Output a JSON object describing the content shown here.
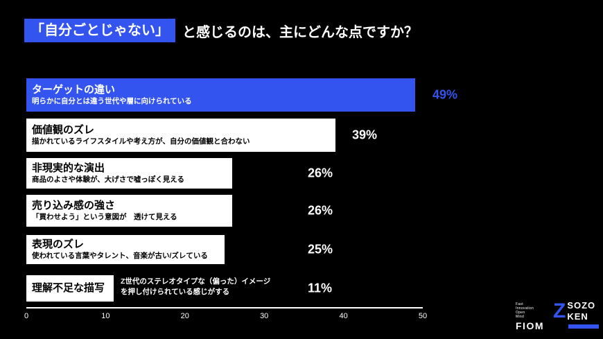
{
  "title": {
    "highlight": "「自分ごとじゃない」",
    "rest": "と感じるのは、主にどんな点ですか？"
  },
  "chart_data": {
    "type": "bar",
    "orientation": "horizontal",
    "xlim": [
      0,
      50
    ],
    "x_ticks": [
      "0",
      "10",
      "20",
      "30",
      "40",
      "50"
    ],
    "highlight_color": "#3354ee",
    "bar_color": "#ffffff",
    "items": [
      {
        "label": "ターゲットの違い",
        "sublabel": "明らかに自分とは違う世代や層に向けられている",
        "value": 49,
        "value_label": "49%"
      },
      {
        "label": "価値観のズレ",
        "sublabel": "描かれているライフスタイルや考え方が、自分の価値観と合わない",
        "value": 39,
        "value_label": "39%"
      },
      {
        "label": "非現実的な演出",
        "sublabel": "商品のよさや体験が、大げさで嘘っぽく見える",
        "value": 26,
        "value_label": "26%"
      },
      {
        "label": "売り込み感の強さ",
        "sublabel": "「買わせよう」という意図が　透けて見える",
        "value": 26,
        "value_label": "26%"
      },
      {
        "label": "表現のズレ",
        "sublabel": "使われている言葉やタレント、音楽が古い/ズレている",
        "value": 25,
        "value_label": "25%"
      },
      {
        "label": "理解不足な描写",
        "sublabel": "Z世代のステレオタイプな（偏った）イメージを押し付けられている感じがする",
        "value": 11,
        "value_label": "11%"
      }
    ]
  },
  "footer": {
    "fiom_tagline": [
      "Fast",
      "Innovation",
      "Open",
      "Mind"
    ],
    "fiom_label": "FIOM",
    "z_glyph": "Z",
    "sozo_top": "SOZO",
    "sozo_bottom": "KEN"
  }
}
